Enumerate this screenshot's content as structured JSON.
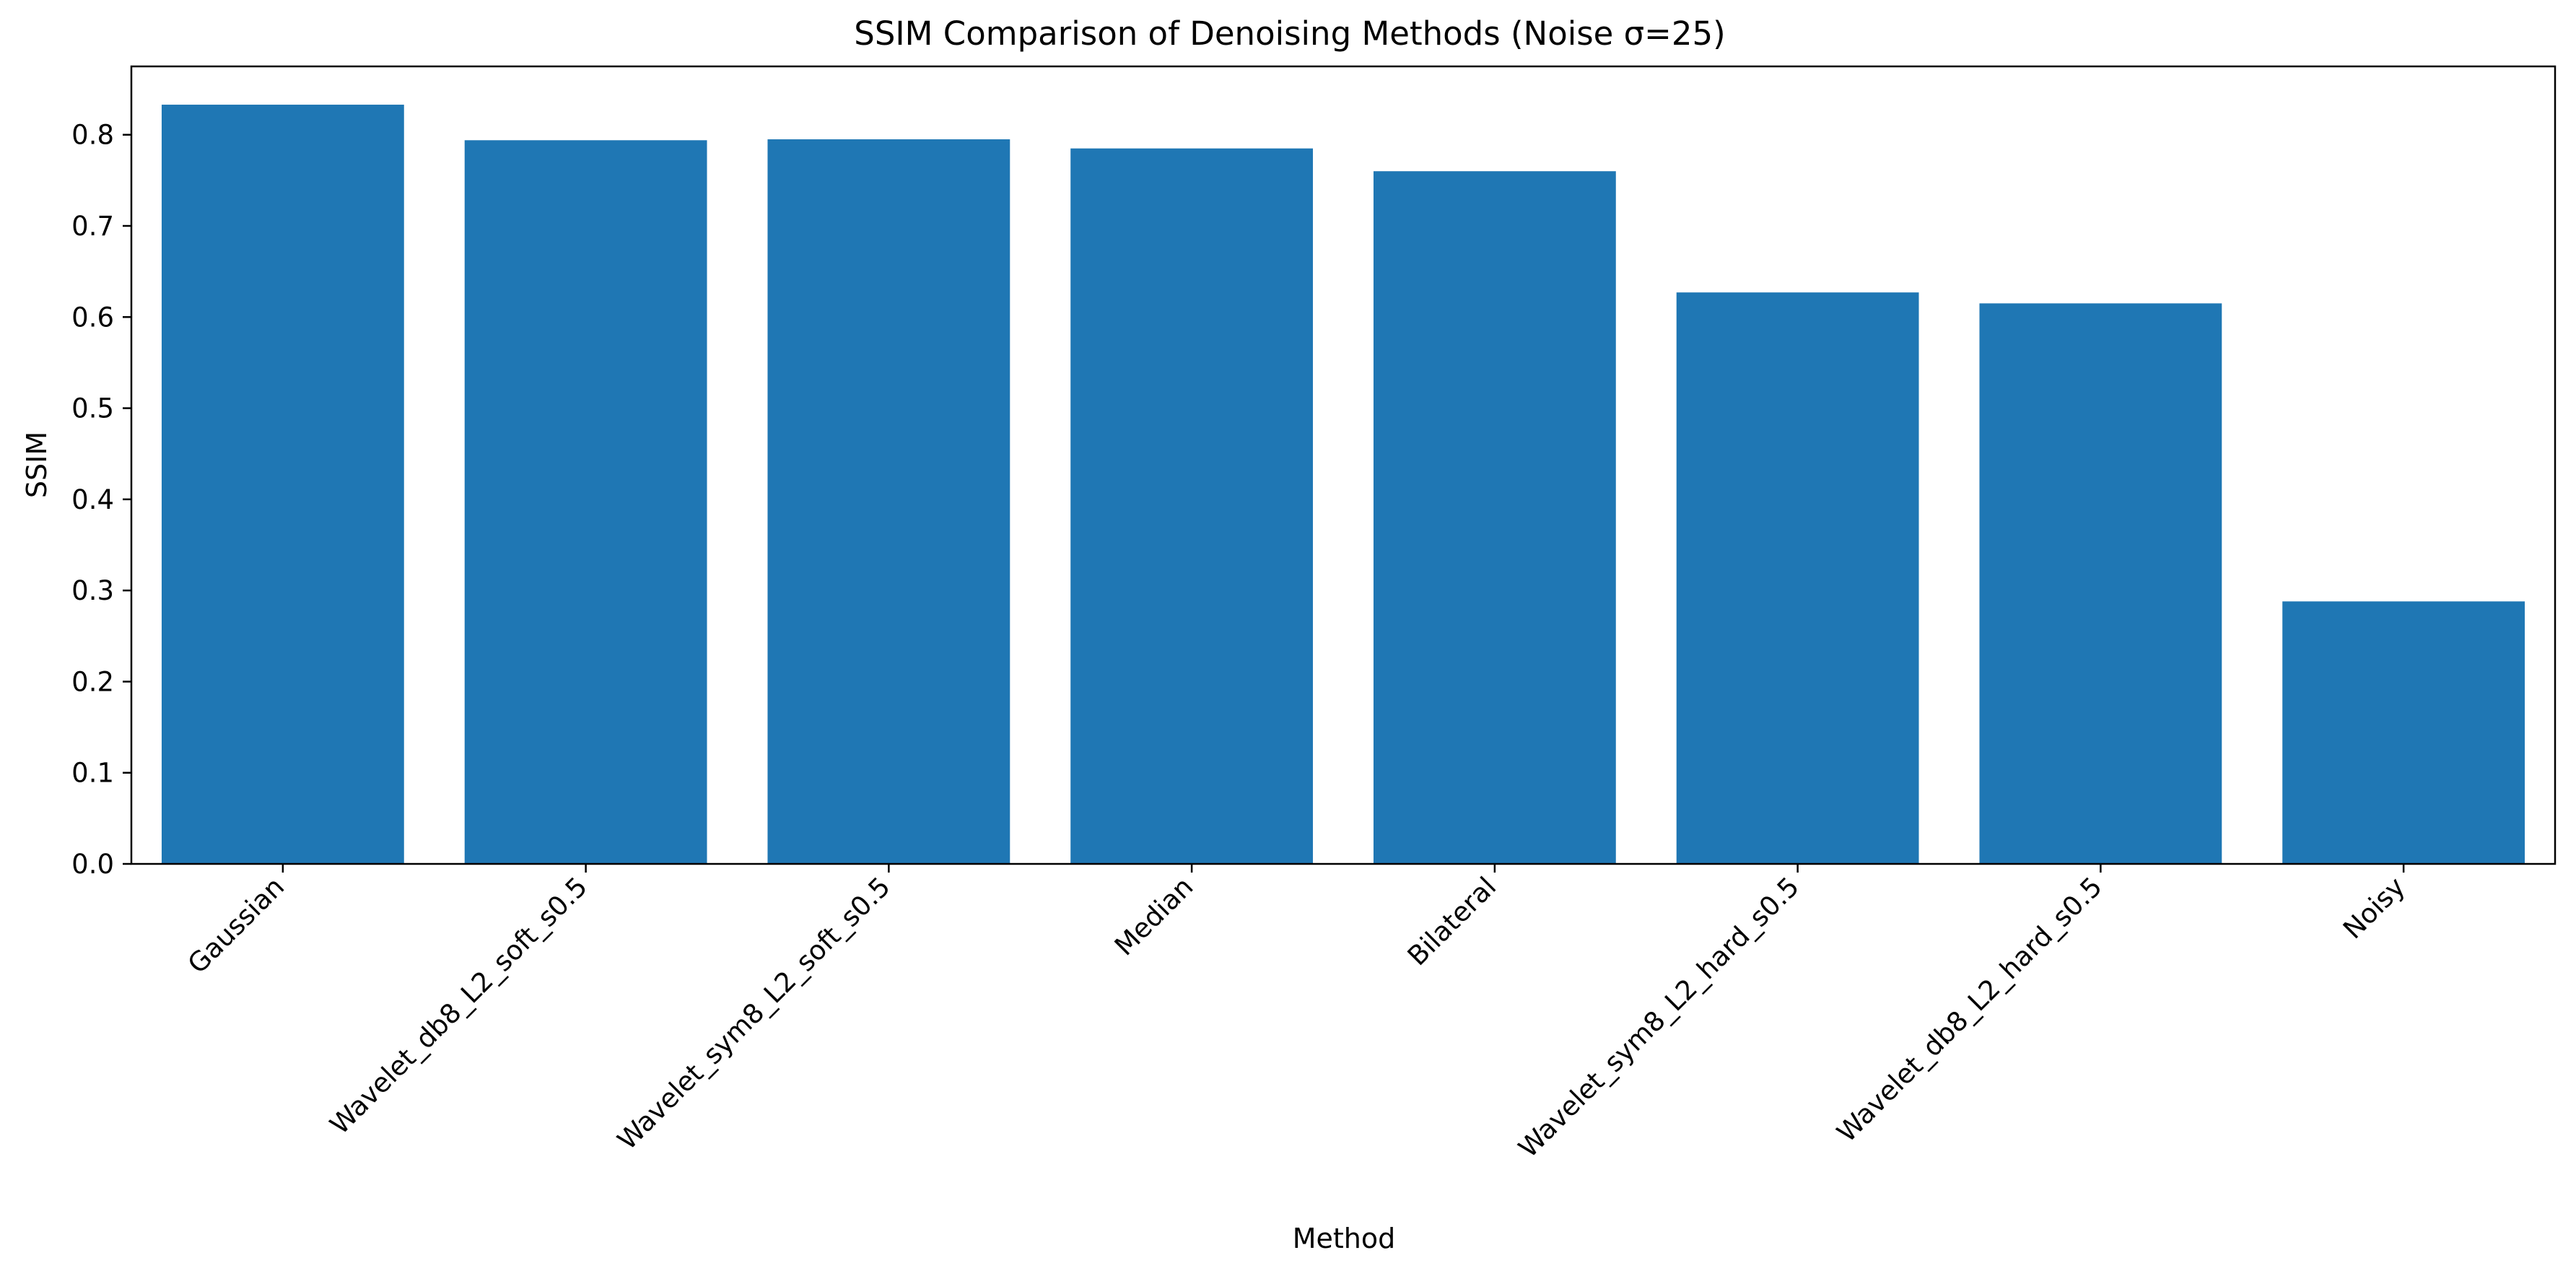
{
  "chart_data": {
    "type": "bar",
    "title": "SSIM Comparison of Denoising Methods (Noise σ=25)",
    "xlabel": "Method",
    "ylabel": "SSIM",
    "categories": [
      "Gaussian",
      "Wavelet_db8_L2_soft_s0.5",
      "Wavelet_sym8_L2_soft_s0.5",
      "Median",
      "Bilateral",
      "Wavelet_sym8_L2_hard_s0.5",
      "Wavelet_db8_L2_hard_s0.5",
      "Noisy"
    ],
    "values": [
      0.833,
      0.794,
      0.795,
      0.785,
      0.76,
      0.627,
      0.615,
      0.288
    ],
    "ylim": [
      0,
      0.875
    ],
    "yticks": [
      0.0,
      0.1,
      0.2,
      0.3,
      0.4,
      0.5,
      0.6,
      0.7,
      0.8
    ],
    "ytick_labels": [
      "0.0",
      "0.1",
      "0.2",
      "0.3",
      "0.4",
      "0.5",
      "0.6",
      "0.7",
      "0.8"
    ],
    "bar_color": "#1f77b4",
    "grid": false,
    "legend": "none"
  }
}
